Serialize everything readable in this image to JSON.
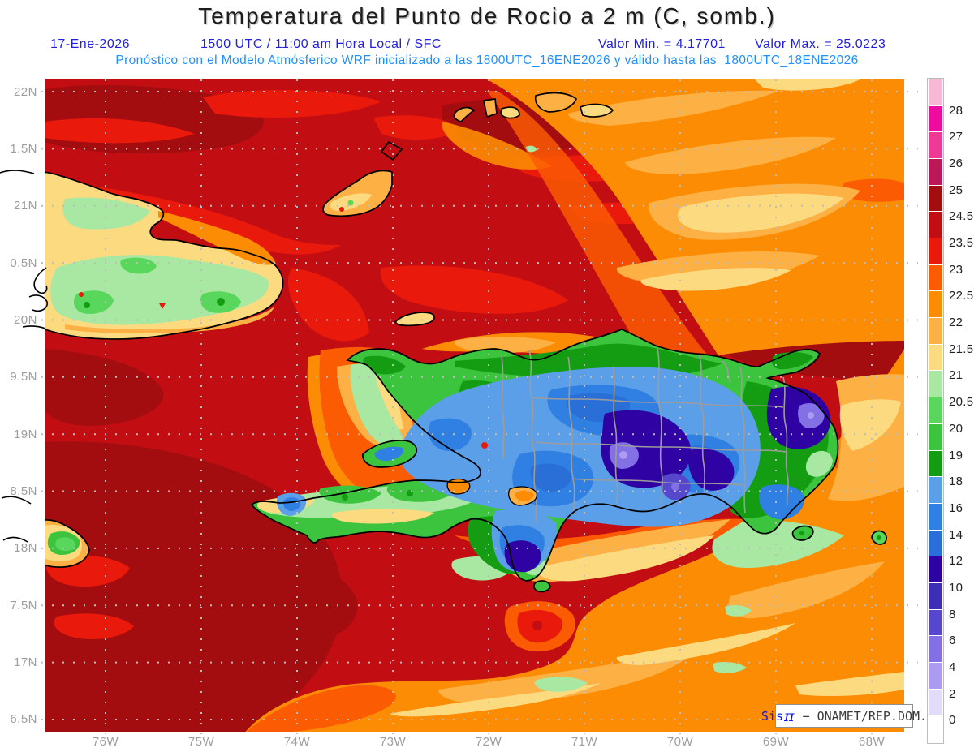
{
  "header": {
    "title": "Temperatura del Punto de Rocio a 2 m (C, somb.)",
    "date": "17-Ene-2026",
    "run_info": "1500 UTC / 11:00 am Hora Local / SFC",
    "min_label": "Valor Min. = 4.17701",
    "max_label": "Valor Max. = 25.0223",
    "forecast_line": "Pronóstico con el Modelo Atmósferico WRF inicializado a las 1800UTC_16ENE2026 y válido hasta las  1800UTC_18ENE2026"
  },
  "axes": {
    "lat_labels": [
      "22N",
      "1.5N",
      "21N",
      "0.5N",
      "20N",
      "9.5N",
      "19N",
      "8.5N",
      "18N",
      "7.5N",
      "17N",
      "6.5N"
    ],
    "lon_labels": [
      "76W",
      "75W",
      "74W",
      "73W",
      "72W",
      "71W",
      "70W",
      "69W",
      "68W"
    ]
  },
  "colorbar": {
    "labels": [
      "28",
      "27",
      "26",
      "25",
      "24.5",
      "23.5",
      "23",
      "22.5",
      "22",
      "21.5",
      "21",
      "20.5",
      "20",
      "19",
      "18",
      "16",
      "14",
      "12",
      "10",
      "8",
      "6",
      "4",
      "2",
      "0"
    ],
    "cell_colors": [
      "#F8B7D4",
      "#EE0C9E",
      "#EF3A95",
      "#BC1858",
      "#A30D10",
      "#C20E13",
      "#E9190C",
      "#FA5B03",
      "#FC8C03",
      "#FDB043",
      "#FCDA80",
      "#A8E8A2",
      "#58D75C",
      "#3CC43E",
      "#149C12",
      "#5C9FE9",
      "#2F80E2",
      "#2A6FD8",
      "#2F02A3",
      "#3E2EB5",
      "#5747CD",
      "#8370E4",
      "#AC9BF3",
      "#E2DBFA",
      "#FFFFFF"
    ]
  },
  "watermark": {
    "brand": "Sis",
    "pi": "π",
    "text": " − ONAMET/REP.DOM."
  },
  "chart_data": {
    "type": "heatmap",
    "subtype": "filled-contour-weather-map",
    "title": "Temperatura del Punto de Rocio a 2 m (C, somb.)",
    "valid_time": "17-Ene-2026 1500 UTC / 11:00 am Hora Local / SFC",
    "model": "WRF inicializado 1800UTC_16ENE2026, válido hasta 1800UTC_18ENE2026",
    "value_min": 4.17701,
    "value_max": 25.0223,
    "units": "C",
    "lon_ticks_W": [
      76,
      75,
      74,
      73,
      72,
      71,
      70,
      69,
      68
    ],
    "lat_ticks_N": [
      22,
      21.5,
      21,
      20.5,
      20,
      19.5,
      19,
      18.5,
      18,
      17.5,
      17,
      16.5
    ],
    "contour_levels": [
      0,
      2,
      4,
      6,
      8,
      10,
      12,
      14,
      16,
      18,
      19,
      20,
      20.5,
      21,
      21.5,
      22,
      22.5,
      23,
      23.5,
      24.5,
      25,
      26,
      27,
      28
    ],
    "palette_low_to_high": [
      "#FFFFFF",
      "#E2DBFA",
      "#AC9BF3",
      "#8370E4",
      "#5747CD",
      "#3E2EB5",
      "#2F02A3",
      "#2A6FD8",
      "#2F80E2",
      "#5C9FE9",
      "#149C12",
      "#3CC43E",
      "#58D75C",
      "#A8E8A2",
      "#FCDA80",
      "#FDB043",
      "#FC8C03",
      "#FA5B03",
      "#E9190C",
      "#C20E13",
      "#A30D10",
      "#BC1858",
      "#EF3A95",
      "#EE0C9E",
      "#F8B7D4"
    ],
    "legend_position": "right",
    "grid": "dotted gray, 1° lon × 0.5° lat",
    "notes": "Sea mostly 23.5-25 C (dark red) west/north; 21-22.5 C (orange/yellow) northeast and southeast; Hispaniola interior 10-20 C (green/blue/indigo/purple minima in Cordillera Central); eastern Cuba and Jamaica tip 20-21.5 C (green/yellow)"
  }
}
